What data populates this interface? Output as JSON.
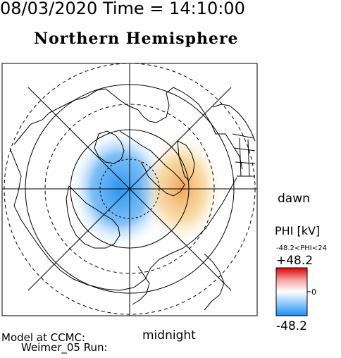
{
  "header": {
    "date_time": "08/03/2020 Time = 14:10:00",
    "title": "Northern Hemisphere"
  },
  "map": {
    "label_dawn": "dawn",
    "label_midnight": "midnight",
    "grid": "polar",
    "negative_cell_color": "#3c9cf2",
    "positive_cell_color": "#f2a85a"
  },
  "legend": {
    "title": "PHI [kV]",
    "range_text": "-48.2<PHI<24",
    "max_label": "+48.2",
    "zero_label": "0",
    "min_label": "-48.2",
    "colors": [
      "#ff0000",
      "#ffffff",
      "#1e90ff"
    ]
  },
  "footer": {
    "line1": "Model at CCMC:",
    "line2": "Weimer_05 Run:"
  }
}
